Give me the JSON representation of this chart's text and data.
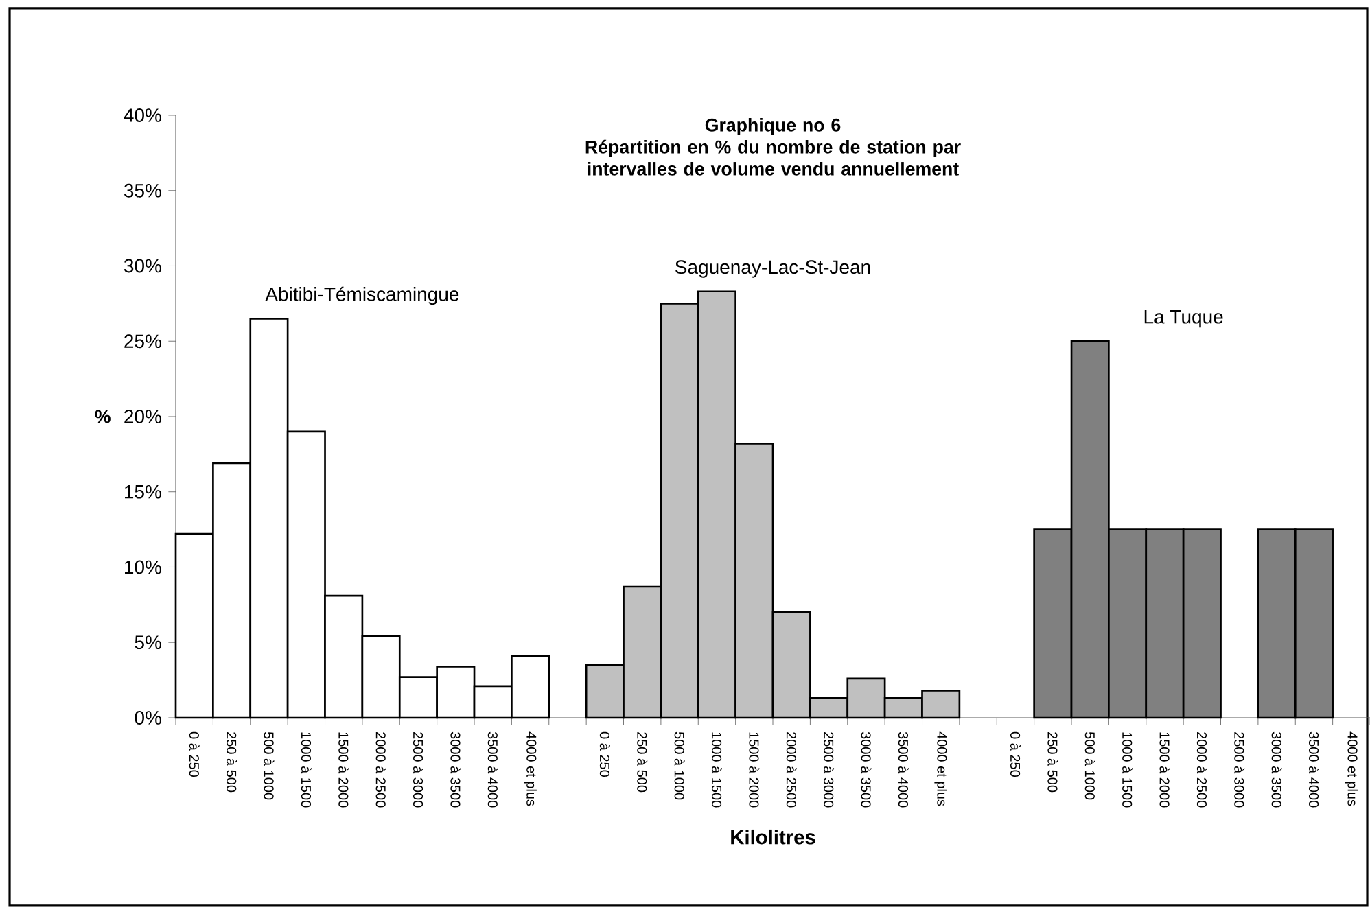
{
  "chart_data": {
    "type": "bar",
    "title": "Graphique no 6",
    "subtitle": "Répartition en % du nombre de station par intervalles de volume vendu annuellement",
    "xlabel": "Kilolitres",
    "ylabel": "%",
    "categories": [
      "0 à 250",
      "250 à 500",
      "500 à 1000",
      "1000 à 1500",
      "1500 à 2000",
      "2000 à 2500",
      "2500 à 3000",
      "3000 à 3500",
      "3500 à 4000",
      "4000 et plus",
      null,
      "0 à 250",
      "250 à 500",
      "500 à 1000",
      "1000 à 1500",
      "1500 à 2000",
      "2000 à 2500",
      "2500 à 3000",
      "3000 à 3500",
      "3500 à 4000",
      "4000 et plus",
      null,
      "0 à 250",
      "250 à 500",
      "500 à 1000",
      "1000 à 1500",
      "1500 à 2000",
      "2000 à 2500",
      "2500 à 3000",
      "3000 à 3500",
      "3500 à 4000",
      "4000 et plus"
    ],
    "series": [
      {
        "name": "Abitibi-Témiscamingue",
        "color": "#ffffff",
        "values": [
          12.2,
          16.9,
          26.5,
          19.0,
          8.1,
          5.4,
          2.7,
          3.4,
          2.1,
          4.1,
          null,
          null,
          null,
          null,
          null,
          null,
          null,
          null,
          null,
          null,
          null,
          null,
          null,
          null,
          null,
          null,
          null,
          null,
          null,
          null,
          null,
          null
        ]
      },
      {
        "name": "Saguenay-Lac-St-Jean",
        "color": "#c0c0c0",
        "values": [
          null,
          null,
          null,
          null,
          null,
          null,
          null,
          null,
          null,
          null,
          null,
          3.5,
          8.7,
          27.5,
          28.3,
          18.2,
          7.0,
          1.3,
          2.6,
          1.3,
          1.8,
          null,
          null,
          null,
          null,
          null,
          null,
          null,
          null,
          null,
          null,
          null
        ]
      },
      {
        "name": "La Tuque",
        "color": "#808080",
        "values": [
          null,
          null,
          null,
          null,
          null,
          null,
          null,
          null,
          null,
          null,
          null,
          null,
          null,
          null,
          null,
          null,
          null,
          null,
          null,
          null,
          null,
          null,
          null,
          12.5,
          25.0,
          12.5,
          12.5,
          12.5,
          null,
          12.5,
          12.5,
          null
        ]
      }
    ],
    "ylim": [
      0,
      40
    ],
    "yticks": [
      {
        "value": 0,
        "label": "0%"
      },
      {
        "value": 5,
        "label": "5%"
      },
      {
        "value": 10,
        "label": "10%"
      },
      {
        "value": 15,
        "label": "15%"
      },
      {
        "value": 20,
        "label": "20%"
      },
      {
        "value": 25,
        "label": "25%"
      },
      {
        "value": 30,
        "label": "30%"
      },
      {
        "value": 35,
        "label": "35%"
      },
      {
        "value": 40,
        "label": "40%"
      }
    ],
    "grid": false,
    "legend": false
  }
}
